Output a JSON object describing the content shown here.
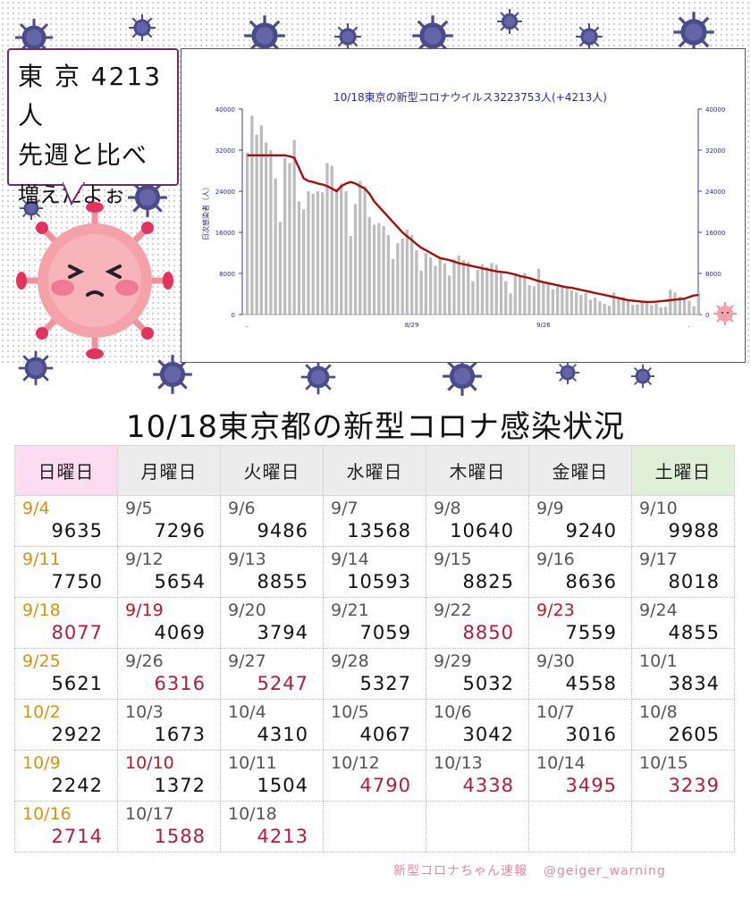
{
  "bubble": {
    "line1": "東 京 4213人",
    "line2": "先週と比べ",
    "line3": "増えたよぉ"
  },
  "colors": {
    "line": "#a01010",
    "bar": "#bdbdbd",
    "axis": "#2a2a8a",
    "pink": "#f49aa6",
    "virus": "#4a4a8a"
  },
  "chart_data": {
    "type": "bar",
    "title": "10/18東京の新型コロナウイルス3223753人(+4213人)",
    "ylabel": "日次感染者（人）",
    "ylim": [
      0,
      40000
    ],
    "y_ticks": [
      0,
      8000,
      16000,
      24000,
      32000,
      40000
    ],
    "x_tick_labels": [
      {
        "label": ".",
        "day_index": 0
      },
      {
        "label": "8/29",
        "day_index": 35
      },
      {
        "label": "9/26",
        "day_index": 63
      },
      {
        "label": ".",
        "day_index": 94
      }
    ],
    "series": [
      {
        "kind": "bar",
        "values": [
          31500,
          38700,
          35000,
          36800,
          33500,
          32000,
          26500,
          18000,
          30500,
          29500,
          34000,
          22000,
          20500,
          24000,
          23500,
          24000,
          23800,
          29500,
          29000,
          24500,
          25500,
          24000,
          15300,
          21500,
          26000,
          25000,
          19000,
          17500,
          17800,
          17200,
          15500,
          10800,
          13900,
          14800,
          16500,
          15500,
          12500,
          8500,
          12000,
          11100,
          9500,
          11200,
          10000,
          7600,
          10800,
          11500,
          10600,
          10300,
          6500,
          8700,
          9800,
          9200,
          10000,
          9700,
          8300,
          6500,
          4100,
          7800,
          7700,
          8100,
          5700,
          5500,
          8900,
          6200,
          6100,
          4900,
          5400,
          5600,
          5300,
          4700,
          4300,
          3800,
          4200,
          2900,
          3300,
          2600,
          2100,
          1700,
          4300,
          3100,
          3400,
          2900,
          1900,
          2000,
          2600,
          2400,
          1800,
          2100,
          1400,
          1500,
          4800,
          4300,
          3500,
          3200,
          2700,
          1600,
          4200
        ]
      },
      {
        "kind": "line",
        "values": [
          31000,
          31000,
          31000,
          31000,
          31000,
          31000,
          31000,
          31000,
          31000,
          30800,
          30500,
          28500,
          26500,
          26000,
          25800,
          25500,
          25300,
          25000,
          24500,
          24000,
          25000,
          25500,
          25800,
          25500,
          25000,
          24500,
          23500,
          22000,
          21000,
          20000,
          19000,
          18000,
          17000,
          16000,
          15200,
          14500,
          13700,
          13000,
          12500,
          12000,
          11500,
          11000,
          10800,
          10600,
          10300,
          10000,
          9800,
          9600,
          9400,
          9200,
          9000,
          8800,
          8600,
          8400,
          8300,
          8200,
          8000,
          7800,
          7500,
          7300,
          7100,
          6800,
          6500,
          6300,
          6100,
          5900,
          5700,
          5500,
          5300,
          5200,
          5000,
          4800,
          4600,
          4400,
          4200,
          4000,
          3800,
          3600,
          3400,
          3200,
          3000,
          2800,
          2700,
          2600,
          2500,
          2450,
          2450,
          2500,
          2600,
          2700,
          2800,
          2900,
          3000,
          3100,
          3400,
          3700,
          3800
        ]
      }
    ]
  },
  "table": {
    "title": "10/18東京都の新型コロナ感染状況",
    "headers": [
      "日曜日",
      "月曜日",
      "火曜日",
      "水曜日",
      "木曜日",
      "金曜日",
      "土曜日"
    ],
    "rows": [
      [
        {
          "d": "9/4",
          "n": "9635",
          "dc": "gold",
          "nc": ""
        },
        {
          "d": "9/5",
          "n": "7296",
          "dc": "",
          "nc": ""
        },
        {
          "d": "9/6",
          "n": "9486",
          "dc": "",
          "nc": ""
        },
        {
          "d": "9/7",
          "n": "13568",
          "dc": "",
          "nc": ""
        },
        {
          "d": "9/8",
          "n": "10640",
          "dc": "",
          "nc": ""
        },
        {
          "d": "9/9",
          "n": "9240",
          "dc": "",
          "nc": ""
        },
        {
          "d": "9/10",
          "n": "9988",
          "dc": "",
          "nc": ""
        }
      ],
      [
        {
          "d": "9/11",
          "n": "7750",
          "dc": "gold",
          "nc": ""
        },
        {
          "d": "9/12",
          "n": "5654",
          "dc": "",
          "nc": ""
        },
        {
          "d": "9/13",
          "n": "8855",
          "dc": "",
          "nc": ""
        },
        {
          "d": "9/14",
          "n": "10593",
          "dc": "",
          "nc": ""
        },
        {
          "d": "9/15",
          "n": "8825",
          "dc": "",
          "nc": ""
        },
        {
          "d": "9/16",
          "n": "8636",
          "dc": "",
          "nc": ""
        },
        {
          "d": "9/17",
          "n": "8018",
          "dc": "",
          "nc": ""
        }
      ],
      [
        {
          "d": "9/18",
          "n": "8077",
          "dc": "gold",
          "nc": "red"
        },
        {
          "d": "9/19",
          "n": "4069",
          "dc": "red",
          "nc": ""
        },
        {
          "d": "9/20",
          "n": "3794",
          "dc": "",
          "nc": ""
        },
        {
          "d": "9/21",
          "n": "7059",
          "dc": "",
          "nc": ""
        },
        {
          "d": "9/22",
          "n": "8850",
          "dc": "",
          "nc": "red"
        },
        {
          "d": "9/23",
          "n": "7559",
          "dc": "red",
          "nc": ""
        },
        {
          "d": "9/24",
          "n": "4855",
          "dc": "",
          "nc": ""
        }
      ],
      [
        {
          "d": "9/25",
          "n": "5621",
          "dc": "gold",
          "nc": ""
        },
        {
          "d": "9/26",
          "n": "6316",
          "dc": "",
          "nc": "red"
        },
        {
          "d": "9/27",
          "n": "5247",
          "dc": "",
          "nc": "red"
        },
        {
          "d": "9/28",
          "n": "5327",
          "dc": "",
          "nc": ""
        },
        {
          "d": "9/29",
          "n": "5032",
          "dc": "",
          "nc": ""
        },
        {
          "d": "9/30",
          "n": "4558",
          "dc": "",
          "nc": ""
        },
        {
          "d": "10/1",
          "n": "3834",
          "dc": "",
          "nc": ""
        }
      ],
      [
        {
          "d": "10/2",
          "n": "2922",
          "dc": "gold",
          "nc": ""
        },
        {
          "d": "10/3",
          "n": "1673",
          "dc": "",
          "nc": ""
        },
        {
          "d": "10/4",
          "n": "4310",
          "dc": "",
          "nc": ""
        },
        {
          "d": "10/5",
          "n": "4067",
          "dc": "",
          "nc": ""
        },
        {
          "d": "10/6",
          "n": "3042",
          "dc": "",
          "nc": ""
        },
        {
          "d": "10/7",
          "n": "3016",
          "dc": "",
          "nc": ""
        },
        {
          "d": "10/8",
          "n": "2605",
          "dc": "",
          "nc": ""
        }
      ],
      [
        {
          "d": "10/9",
          "n": "2242",
          "dc": "gold",
          "nc": ""
        },
        {
          "d": "10/10",
          "n": "1372",
          "dc": "red",
          "nc": ""
        },
        {
          "d": "10/11",
          "n": "1504",
          "dc": "",
          "nc": ""
        },
        {
          "d": "10/12",
          "n": "4790",
          "dc": "",
          "nc": "red"
        },
        {
          "d": "10/13",
          "n": "4338",
          "dc": "",
          "nc": "red"
        },
        {
          "d": "10/14",
          "n": "3495",
          "dc": "",
          "nc": "red"
        },
        {
          "d": "10/15",
          "n": "3239",
          "dc": "",
          "nc": "red"
        }
      ],
      [
        {
          "d": "10/16",
          "n": "2714",
          "dc": "gold",
          "nc": "red"
        },
        {
          "d": "10/17",
          "n": "1588",
          "dc": "",
          "nc": "red"
        },
        {
          "d": "10/18",
          "n": "4213",
          "dc": "",
          "nc": "red"
        },
        {
          "d": "",
          "n": "",
          "dc": "",
          "nc": ""
        },
        {
          "d": "",
          "n": "",
          "dc": "",
          "nc": ""
        },
        {
          "d": "",
          "n": "",
          "dc": "",
          "nc": ""
        },
        {
          "d": "",
          "n": "",
          "dc": "",
          "nc": ""
        }
      ]
    ]
  },
  "footer": {
    "brand": "新型コロナちゃん速報",
    "handle": "@geiger_warning"
  }
}
